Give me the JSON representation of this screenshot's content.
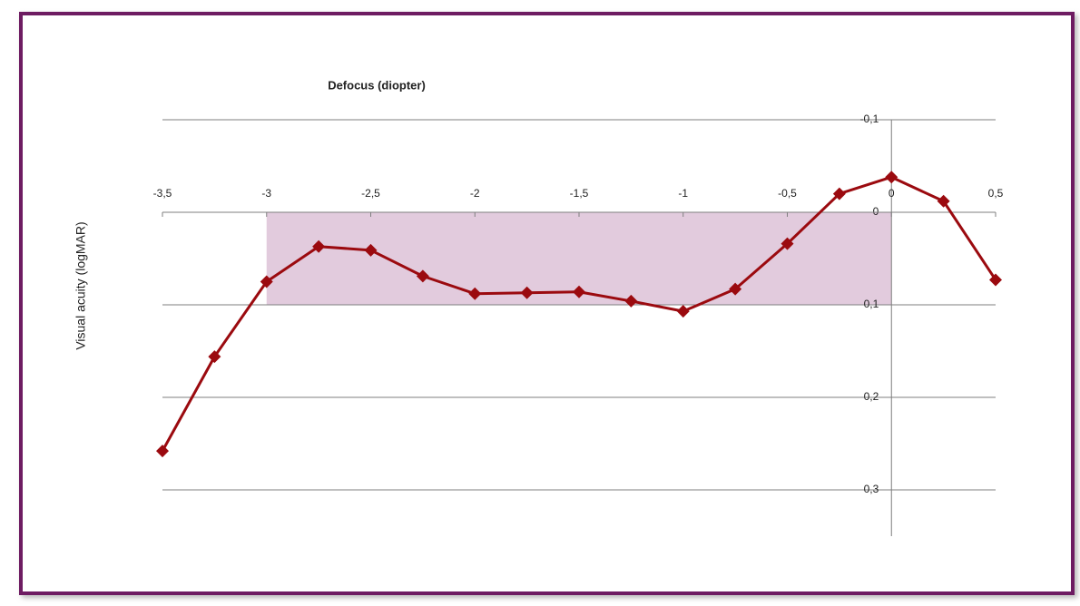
{
  "chart_data": {
    "type": "line",
    "title": "Defocus (diopter)",
    "y_label": "Visual acuity (logMAR)",
    "x": [
      -3.5,
      -3.25,
      -3,
      -2.75,
      -2.5,
      -2.25,
      -2,
      -1.75,
      -1.5,
      -1.25,
      -1,
      -0.75,
      -0.5,
      -0.25,
      0,
      0.25,
      0.5
    ],
    "series": [
      {
        "name": null,
        "color": "#9b0a0f",
        "values": [
          0.258,
          0.156,
          0.075,
          0.037,
          0.041,
          0.069,
          0.088,
          0.087,
          0.086,
          0.096,
          0.107,
          0.083,
          0.034,
          -0.02,
          -0.038,
          -0.012,
          0.073
        ]
      }
    ],
    "xlim": [
      -3.5,
      0.5
    ],
    "xticks": [
      {
        "value": -3.5,
        "label": "-3,5"
      },
      -3,
      {
        "value": -2.5,
        "label": "-2,5"
      },
      -2,
      {
        "value": -1.5,
        "label": "-1,5"
      },
      -1,
      {
        "value": -0.5,
        "label": "-0,5"
      },
      0,
      {
        "value": 0.5,
        "label": "0,5"
      }
    ],
    "ylim": [
      -0.1,
      0.35
    ],
    "yticks": [
      {
        "value": -0.1,
        "label": "-0,1"
      },
      0,
      {
        "value": 0.1,
        "label": "0,1"
      },
      {
        "value": 0.2,
        "label": "0,2"
      },
      {
        "value": 0.3,
        "label": "0,3"
      }
    ],
    "y_inverted": true,
    "grid": true,
    "highlight": {
      "x": [
        -3,
        0
      ],
      "y": [
        0,
        0.1
      ],
      "color": "#e2cbdd"
    }
  }
}
